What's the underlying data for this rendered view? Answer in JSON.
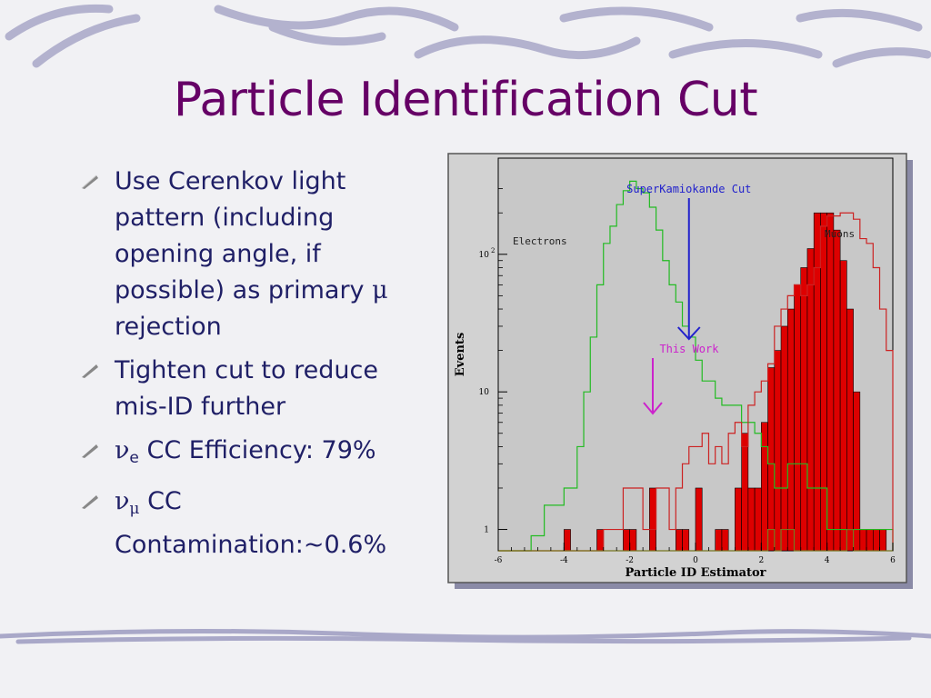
{
  "slide": {
    "title": "Particle Identification Cut",
    "bullets": [
      {
        "lines": [
          "Use Cerenkov light",
          "pattern (including",
          "opening angle, if",
          "possible) as primary "
        ],
        "tail_symbol": "μ",
        "tail_after": "rejection"
      },
      {
        "lines": [
          "Tighten cut to reduce",
          "mis-ID further"
        ]
      },
      {
        "symbol": "ν",
        "sub": "e",
        "text": " CC Efficiency: 79%"
      },
      {
        "symbol": "ν",
        "sub": "μ",
        "text": " CC",
        "line2": "Contamination:~0.6%"
      }
    ],
    "colors": {
      "title": "#660066",
      "text": "#1f1f66",
      "bullet": "#777777"
    }
  },
  "chart_data": {
    "type": "histogram",
    "xlabel": "Particle ID Estimator",
    "ylabel": "Events",
    "xlim": [
      -6,
      6
    ],
    "ylim": [
      0.7,
      500
    ],
    "log_y": true,
    "x_ticks": [
      "-6",
      "-4",
      "-2",
      "0",
      "2",
      "4",
      "6"
    ],
    "y_ticks": [
      {
        "value": 1,
        "label": "1"
      },
      {
        "value": 10,
        "label": "10"
      },
      {
        "value": 100,
        "label": "10",
        "sup": "2"
      }
    ],
    "bin_width": 0.2,
    "bin_start": -6,
    "series": [
      {
        "name": "Electrons",
        "style": "step",
        "color": "#22bb22",
        "values": [
          0,
          0,
          0,
          0,
          0,
          0.9,
          0.9,
          1.5,
          1.5,
          1.5,
          2,
          2,
          4,
          10,
          25,
          60,
          120,
          160,
          230,
          290,
          340,
          300,
          280,
          220,
          150,
          90,
          60,
          45,
          30,
          25,
          17,
          12,
          12,
          9,
          8,
          8,
          8,
          6,
          6,
          5,
          4,
          3,
          2,
          2,
          3,
          3,
          3,
          2,
          2,
          2,
          1,
          1,
          1,
          1,
          1,
          1,
          1,
          1,
          1,
          1
        ]
      },
      {
        "name": "Muons",
        "style": "step",
        "color": "#cc2222",
        "values": [
          0,
          0,
          0,
          0,
          0,
          0,
          0,
          0,
          0,
          0,
          0,
          0,
          0,
          0,
          0,
          0,
          1,
          1,
          1,
          2,
          2,
          2,
          1,
          1,
          2,
          2,
          1,
          2,
          3,
          4,
          4,
          5,
          3,
          4,
          3,
          5,
          6,
          4,
          8,
          10,
          12,
          16,
          30,
          40,
          50,
          60,
          50,
          60,
          80,
          160,
          190,
          190,
          200,
          200,
          180,
          130,
          120,
          80,
          40,
          20
        ]
      },
      {
        "name": "",
        "style": "filled",
        "color": "#dd0000",
        "values": [
          0,
          0,
          0,
          0,
          0,
          0,
          0,
          0,
          0,
          0,
          1,
          0,
          0,
          0,
          0,
          1,
          0,
          0,
          0,
          1,
          1,
          0,
          0,
          2,
          0,
          0,
          0,
          1,
          1,
          0,
          2,
          0,
          0,
          1,
          1,
          0,
          2,
          5,
          2,
          2,
          6,
          15,
          20,
          30,
          40,
          60,
          80,
          110,
          200,
          200,
          200,
          150,
          90,
          40,
          10,
          1,
          1,
          1,
          1,
          0
        ]
      },
      {
        "name": "",
        "style": "step",
        "color": "#777722",
        "values": [
          0,
          0,
          0,
          0,
          0,
          0,
          0,
          0,
          0,
          0,
          0,
          0,
          0,
          0,
          0,
          0,
          0,
          0,
          0,
          0,
          0,
          0,
          0,
          0,
          0,
          0,
          0,
          0,
          0,
          0,
          0,
          0,
          0,
          0,
          0,
          0,
          0,
          0,
          0,
          0,
          0,
          1,
          0,
          1,
          1,
          0,
          0,
          0,
          0,
          0,
          0,
          0,
          0,
          1,
          0,
          0,
          0,
          0,
          0,
          0
        ]
      }
    ],
    "annotations": [
      {
        "text": "Electrons",
        "color": "#222222"
      },
      {
        "text": "Muons",
        "color": "#222222"
      },
      {
        "text": "SuperKamiokande Cut",
        "color": "#2222cc",
        "x": -0.2
      },
      {
        "text": "This Work",
        "color": "#cc22cc",
        "x": -1.3
      }
    ]
  }
}
